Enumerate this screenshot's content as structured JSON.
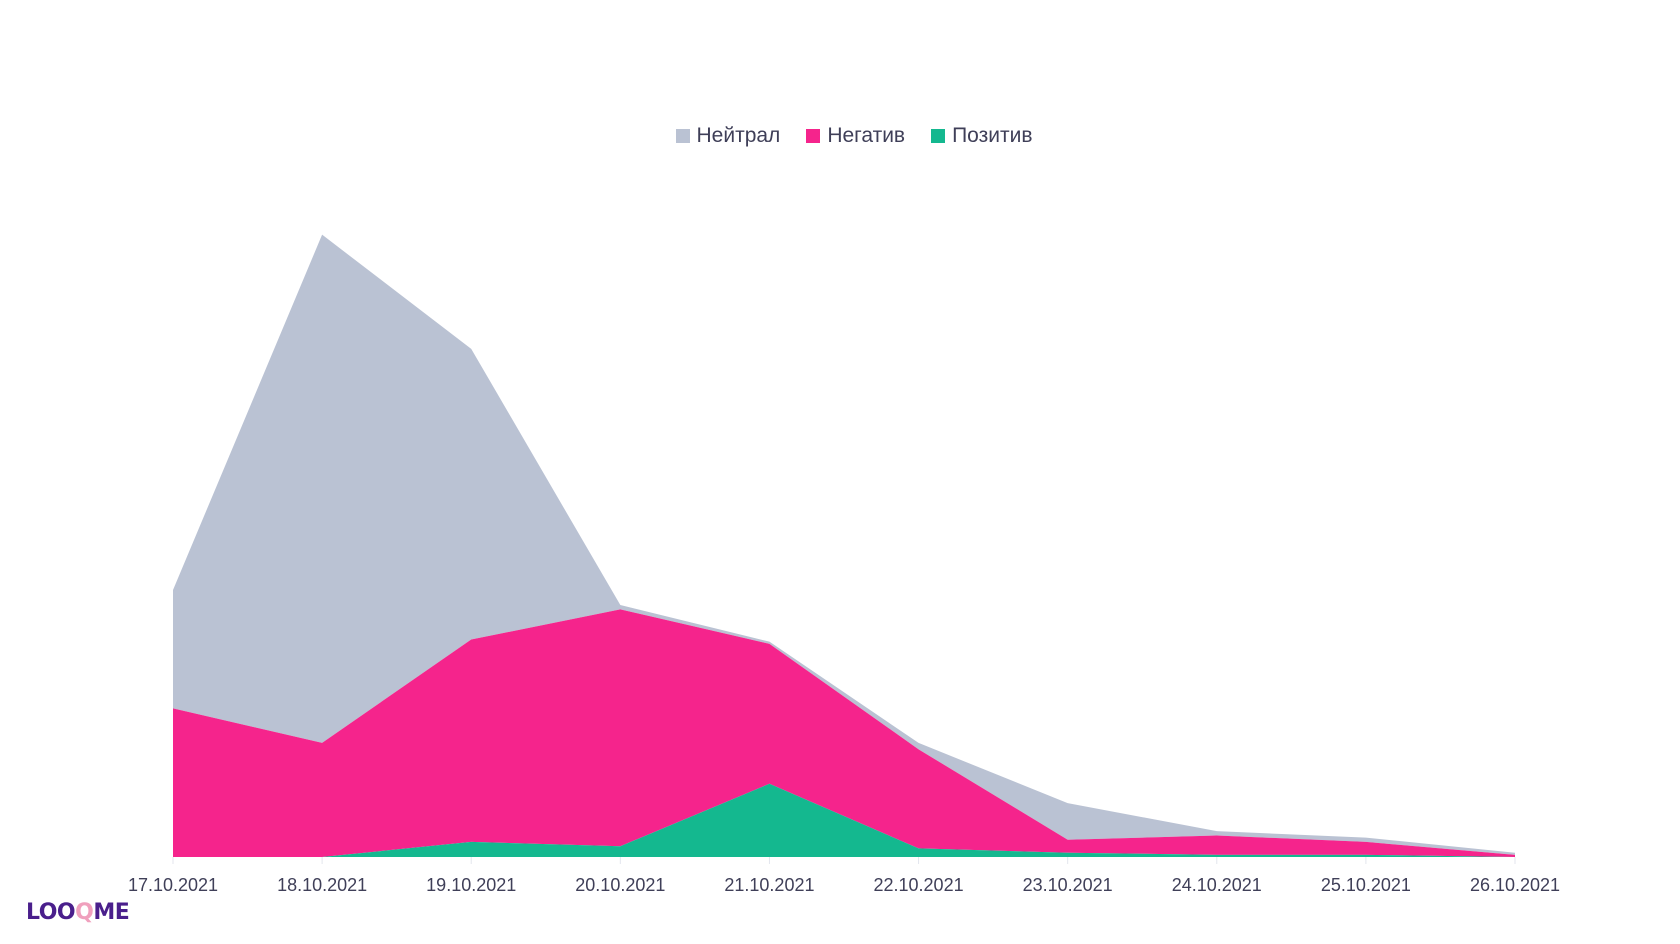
{
  "chart_data": {
    "type": "area",
    "stacked": true,
    "title": "",
    "xlabel": "",
    "ylabel": "",
    "categories": [
      "17.10.2021",
      "18.10.2021",
      "19.10.2021",
      "20.10.2021",
      "21.10.2021",
      "22.10.2021",
      "23.10.2021",
      "24.10.2021",
      "25.10.2021",
      "26.10.2021"
    ],
    "series": [
      {
        "name": "Позитив",
        "color": "#14b88f",
        "values": [
          0,
          0,
          7,
          5,
          34,
          4,
          2,
          1,
          1,
          0
        ]
      },
      {
        "name": "Негатив",
        "color": "#f5248c",
        "values": [
          69,
          53,
          94,
          110,
          65,
          46,
          6,
          9,
          6,
          1
        ]
      },
      {
        "name": "Нейтрал",
        "color": "#bac2d3",
        "values": [
          55,
          236,
          135,
          2,
          1,
          3,
          17,
          2,
          2,
          1
        ]
      }
    ],
    "legend_order": [
      "Нейтрал",
      "Негатив",
      "Позитив"
    ],
    "legend_position": "top-center",
    "ylim": [
      0,
      300
    ],
    "grid": false
  },
  "logo": {
    "text_a": "LOO",
    "text_q": "Q",
    "text_b": "ME"
  }
}
